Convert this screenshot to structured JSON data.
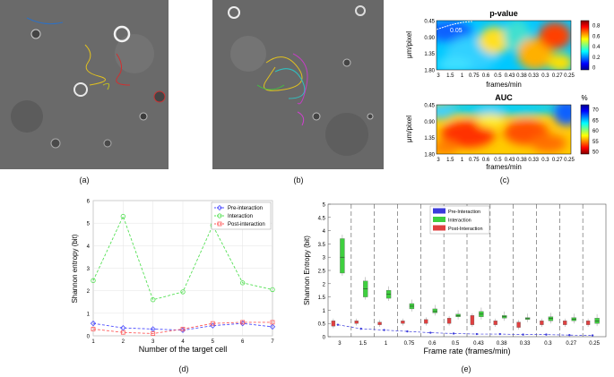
{
  "figure": {
    "labels": [
      "(a)",
      "(b)",
      "(c)",
      "(d)",
      "(e)"
    ]
  },
  "colors": {
    "pre": "#3b3bdb",
    "interaction": "#3fcf3f",
    "post": "#e04040",
    "dash_pre": "#4d4dff",
    "dash_int": "#55e055",
    "dash_post": "#ff5a5a"
  },
  "chart_data": [
    {
      "type": "heatmap",
      "panel": "c-top",
      "title": "p-value",
      "xlabel": "frames/min",
      "ylabel": "μm/pixel",
      "x_ticks": [
        "3",
        "1.5",
        "1",
        "0.75",
        "0.6",
        "0.5",
        "0.43",
        "0.38",
        "0.33",
        "0.3",
        "0.27",
        "0.25"
      ],
      "y_ticks": [
        "0.45",
        "0.90",
        "1.35",
        "1.80"
      ],
      "colorbar_ticks": [
        "0.8",
        "0.6",
        "0.4",
        "0.2",
        "0"
      ],
      "contour_label": "0.05"
    },
    {
      "type": "heatmap",
      "panel": "c-bottom",
      "title": "AUC",
      "xlabel": "frames/min",
      "ylabel": "μm/pixel",
      "x_ticks": [
        "3",
        "1.5",
        "1",
        "0.75",
        "0.6",
        "0.5",
        "0.43",
        "0.38",
        "0.33",
        "0.3",
        "0.27",
        "0.25"
      ],
      "y_ticks": [
        "0.45",
        "0.90",
        "1.35",
        "1.80"
      ],
      "colorbar_unit": "%",
      "colorbar_ticks": [
        "70",
        "65",
        "60",
        "55",
        "50"
      ]
    },
    {
      "type": "line",
      "panel": "d",
      "xlabel": "Number of the target cell",
      "ylabel": "Shannon entropy (bit)",
      "x": [
        1,
        2,
        3,
        4,
        5,
        6,
        7
      ],
      "xlim": [
        1,
        7
      ],
      "ylim": [
        0,
        6
      ],
      "y_ticks": [
        0,
        1,
        2,
        3,
        4,
        5,
        6
      ],
      "series": [
        {
          "name": "Pre-interaction",
          "values": [
            0.55,
            0.35,
            0.3,
            0.25,
            0.45,
            0.55,
            0.4
          ]
        },
        {
          "name": "Interaction",
          "values": [
            2.45,
            5.3,
            1.6,
            1.95,
            4.9,
            2.35,
            2.05
          ]
        },
        {
          "name": "Post-interaction",
          "values": [
            0.3,
            0.15,
            0.1,
            0.3,
            0.55,
            0.6,
            0.6
          ]
        }
      ]
    },
    {
      "type": "box",
      "panel": "e",
      "xlabel": "Frame rate (frames/min)",
      "ylabel": "Shannon Entropy (bit)",
      "categories": [
        "3",
        "1.5",
        "1",
        "0.75",
        "0.6",
        "0.5",
        "0.43",
        "0.38",
        "0.33",
        "0.3",
        "0.27",
        "0.25"
      ],
      "ylim": [
        0,
        5
      ],
      "y_ticks": [
        "0",
        "0.5",
        "1",
        "1.5",
        "2",
        "2.5",
        "3",
        "3.5",
        "4",
        "4.5",
        "5"
      ],
      "series": [
        {
          "name": "Pre-Interaction",
          "medians": [
            0.45,
            0.3,
            0.25,
            0.2,
            0.15,
            0.12,
            0.1,
            0.1,
            0.08,
            0.08,
            0.06,
            0.05
          ]
        },
        {
          "name": "Interaction",
          "boxes": [
            [
              2.4,
              3.7,
              3.0
            ],
            [
              1.5,
              2.1,
              1.8
            ],
            [
              1.45,
              1.75,
              1.6
            ],
            [
              1.05,
              1.25,
              1.15
            ],
            [
              0.9,
              1.05,
              0.95
            ],
            [
              0.75,
              0.85,
              0.8
            ],
            [
              0.75,
              0.95,
              0.85
            ],
            [
              0.7,
              0.8,
              0.75
            ],
            [
              0.65,
              0.72,
              0.68
            ],
            [
              0.6,
              0.75,
              0.7
            ],
            [
              0.6,
              0.72,
              0.65
            ],
            [
              0.5,
              0.7,
              0.6
            ]
          ]
        },
        {
          "name": "Post-Interaction",
          "boxes": [
            [
              0.4,
              0.6,
              0.5
            ],
            [
              0.5,
              0.6,
              0.55
            ],
            [
              0.45,
              0.55,
              0.5
            ],
            [
              0.5,
              0.6,
              0.55
            ],
            [
              0.5,
              0.65,
              0.55
            ],
            [
              0.5,
              0.7,
              0.6
            ],
            [
              0.45,
              0.8,
              0.6
            ],
            [
              0.45,
              0.6,
              0.5
            ],
            [
              0.35,
              0.55,
              0.45
            ],
            [
              0.45,
              0.6,
              0.5
            ],
            [
              0.45,
              0.6,
              0.5
            ],
            [
              0.45,
              0.6,
              0.5
            ]
          ]
        }
      ]
    }
  ]
}
